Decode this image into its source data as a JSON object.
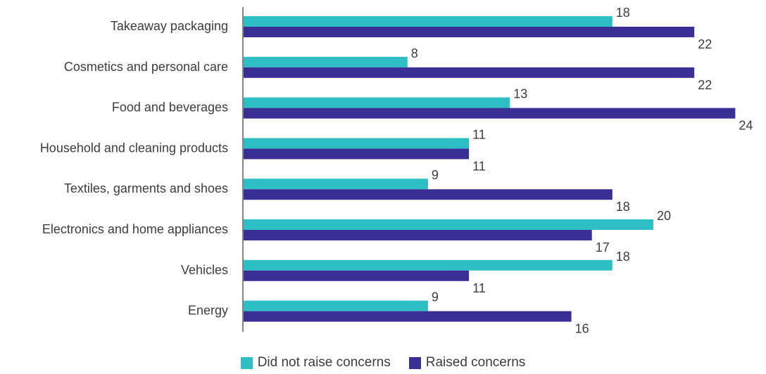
{
  "chart_data": {
    "type": "bar",
    "orientation": "horizontal",
    "categories": [
      "Takeaway packaging",
      "Cosmetics and personal care",
      "Food and beverages",
      "Household and cleaning products",
      "Textiles, garments and shoes",
      "Electronics and home appliances",
      "Vehicles",
      "Energy"
    ],
    "series": [
      {
        "name": "Did not raise concerns",
        "color": "#2ebfc4",
        "values": [
          18,
          8,
          13,
          11,
          9,
          20,
          18,
          9
        ]
      },
      {
        "name": "Raised concerns",
        "color": "#3a2f94",
        "values": [
          22,
          22,
          24,
          11,
          18,
          17,
          11,
          16
        ]
      }
    ],
    "xlim": [
      0,
      24
    ],
    "grid": false,
    "legend_position": "bottom-center"
  },
  "legend": {
    "items": [
      {
        "label": "Did not raise concerns",
        "color": "#2ebfc4"
      },
      {
        "label": "Raised concerns",
        "color": "#3a2f94"
      }
    ]
  }
}
